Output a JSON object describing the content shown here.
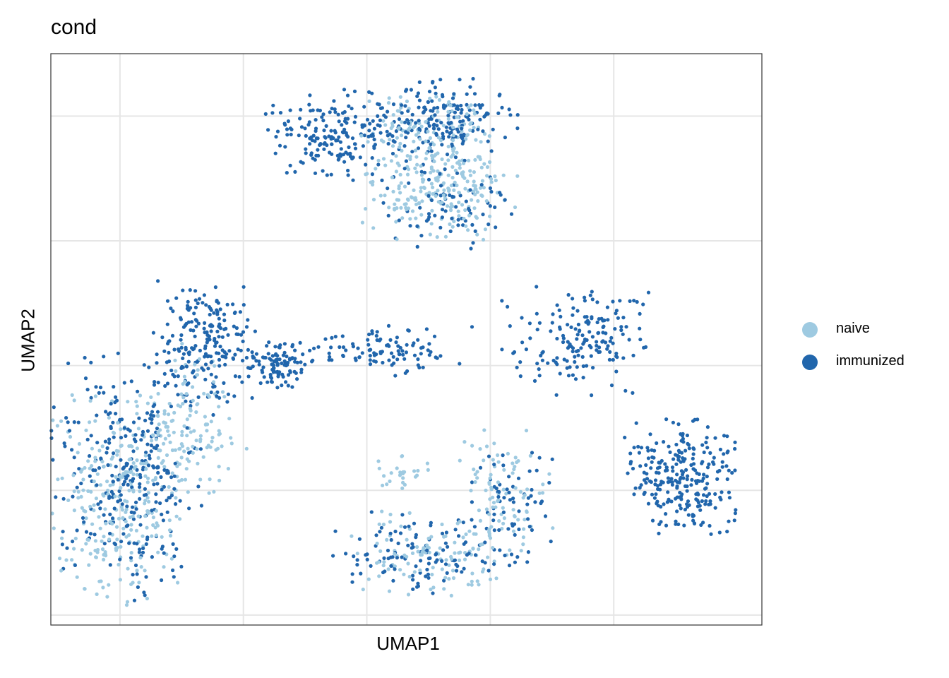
{
  "chart_data": {
    "type": "scatter",
    "title": "cond",
    "xlabel": "UMAP1",
    "ylabel": "UMAP2",
    "grid": true,
    "tick_labels": "none",
    "legend_placement": "right",
    "xlim": [
      -7.8,
      21.0
    ],
    "ylim": [
      -10.4,
      12.5
    ],
    "series": [
      {
        "name": "naive",
        "color": "#9ecae1",
        "clusters": [
          {
            "region": "upper",
            "cx": 8.0,
            "cy": 7.0,
            "sx": 1.5,
            "sy": 0.9,
            "n": 220
          },
          {
            "region": "upper",
            "cx": 7.5,
            "cy": 9.5,
            "sx": 1.3,
            "sy": 0.7,
            "n": 120
          },
          {
            "region": "left",
            "cx": -5.2,
            "cy": -5.5,
            "sx": 1.2,
            "sy": 2.0,
            "n": 260
          },
          {
            "region": "left",
            "cx": -2.5,
            "cy": -3.0,
            "sx": 1.2,
            "sy": 1.0,
            "n": 120
          },
          {
            "region": "left",
            "cx": -2.0,
            "cy": -0.5,
            "sx": 0.6,
            "sy": 0.8,
            "n": 30
          },
          {
            "region": "lower-middle",
            "cx": 7.5,
            "cy": -7.5,
            "sx": 1.6,
            "sy": 0.8,
            "n": 110
          },
          {
            "region": "lower-middle",
            "cx": 10.6,
            "cy": -5.0,
            "sx": 0.9,
            "sy": 1.2,
            "n": 90
          },
          {
            "region": "lower-middle",
            "cx": 6.5,
            "cy": -4.3,
            "sx": 0.5,
            "sy": 0.4,
            "n": 25
          }
        ]
      },
      {
        "name": "immunized",
        "color": "#2166ac",
        "clusters": [
          {
            "region": "upper",
            "cx": 3.5,
            "cy": 9.2,
            "sx": 1.2,
            "sy": 0.9,
            "n": 170
          },
          {
            "region": "upper",
            "cx": 7.8,
            "cy": 9.8,
            "sx": 1.6,
            "sy": 0.8,
            "n": 200
          },
          {
            "region": "upper",
            "cx": 8.5,
            "cy": 6.5,
            "sx": 1.3,
            "sy": 0.9,
            "n": 80
          },
          {
            "region": "left",
            "cx": -1.5,
            "cy": 1.0,
            "sx": 1.0,
            "sy": 1.2,
            "n": 210
          },
          {
            "region": "left",
            "cx": -4.5,
            "cy": -4.5,
            "sx": 1.5,
            "sy": 2.3,
            "n": 300
          },
          {
            "region": "middle-arc",
            "cx": 5.5,
            "cy": 0.6,
            "sx": 1.8,
            "sy": 0.5,
            "n": 110
          },
          {
            "region": "middle-arc",
            "cx": 1.3,
            "cy": 0.0,
            "sx": 0.5,
            "sy": 0.5,
            "n": 90
          },
          {
            "region": "middle-arc",
            "cx": 13.5,
            "cy": 1.0,
            "sx": 1.4,
            "sy": 1.0,
            "n": 170
          },
          {
            "region": "right-lower",
            "cx": 17.8,
            "cy": -4.5,
            "sx": 1.1,
            "sy": 1.1,
            "n": 260
          },
          {
            "region": "lower-middle",
            "cx": 7.0,
            "cy": -7.6,
            "sx": 1.6,
            "sy": 0.8,
            "n": 110
          },
          {
            "region": "lower-middle",
            "cx": 10.6,
            "cy": -5.5,
            "sx": 0.9,
            "sy": 1.3,
            "n": 70
          }
        ]
      }
    ]
  }
}
